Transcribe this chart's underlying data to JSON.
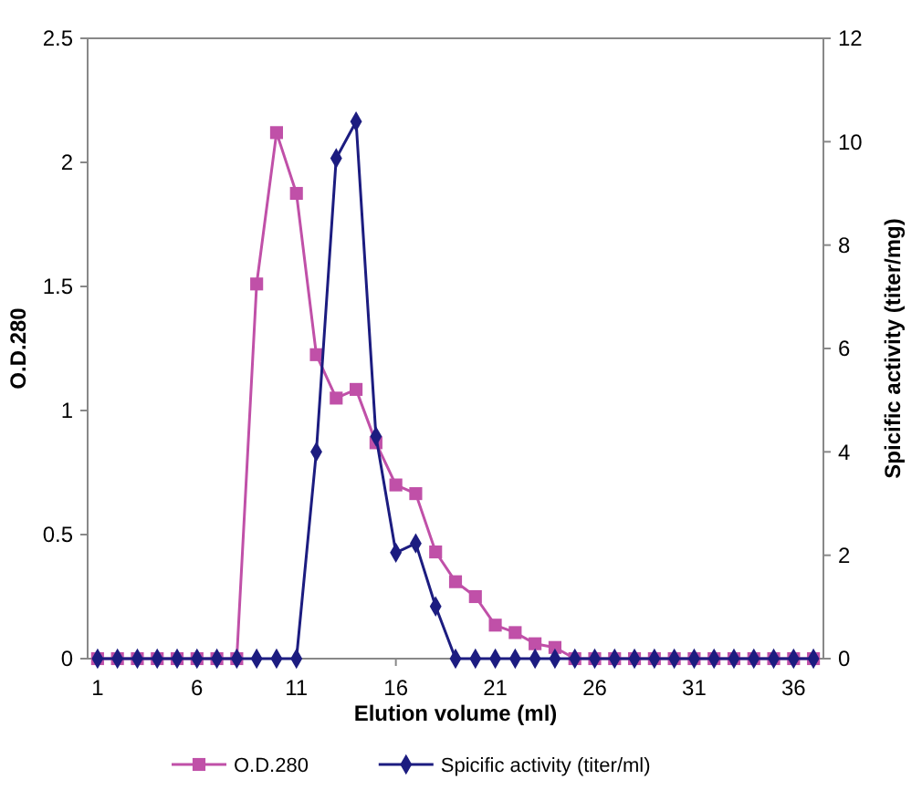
{
  "chart_data": {
    "type": "line",
    "xlabel": "Elution volume (ml)",
    "ylabel": "O.D.280",
    "y2label": "Spicific activity (titer/mg)",
    "x": [
      1,
      2,
      3,
      4,
      5,
      6,
      7,
      8,
      9,
      10,
      11,
      12,
      13,
      14,
      15,
      16,
      17,
      18,
      19,
      20,
      21,
      22,
      23,
      24,
      25,
      26,
      27,
      28,
      29,
      30,
      31,
      32,
      33,
      34,
      35,
      36,
      37
    ],
    "xlim": [
      0.5,
      37.5
    ],
    "xticks": [
      1,
      6,
      11,
      16,
      21,
      26,
      31,
      36
    ],
    "ylim": [
      0,
      2.5
    ],
    "yticks": [
      0,
      0.5,
      1,
      1.5,
      2,
      2.5
    ],
    "y2lim": [
      0,
      12
    ],
    "y2ticks": [
      0,
      2,
      4,
      6,
      8,
      10,
      12
    ],
    "legend": "bottom",
    "grid": false,
    "series": [
      {
        "name": "O.D.280",
        "color": "#c050a8",
        "marker": "square",
        "values": [
          0,
          0,
          0,
          0,
          0,
          0,
          0,
          0,
          1.51,
          2.12,
          1.875,
          1.225,
          1.05,
          1.085,
          0.87,
          0.7,
          0.665,
          0.43,
          0.31,
          0.25,
          0.135,
          0.105,
          0.06,
          0.045,
          0,
          0,
          0,
          0,
          0,
          0,
          0,
          0,
          0,
          0,
          0,
          0,
          0
        ]
      },
      {
        "name": "Spicific activity (titer/ml)",
        "color": "#1c1c80",
        "marker": "diamond",
        "axis": "y2",
        "values": [
          0,
          0,
          0,
          0,
          0,
          0,
          0,
          0,
          0,
          0,
          0,
          4,
          9.68,
          10.39,
          4.3,
          2.05,
          2.23,
          1.01,
          0,
          0,
          0,
          0,
          0,
          0,
          0,
          0,
          0,
          0,
          0,
          0,
          0,
          0,
          0,
          0,
          0,
          0,
          0
        ]
      }
    ]
  }
}
